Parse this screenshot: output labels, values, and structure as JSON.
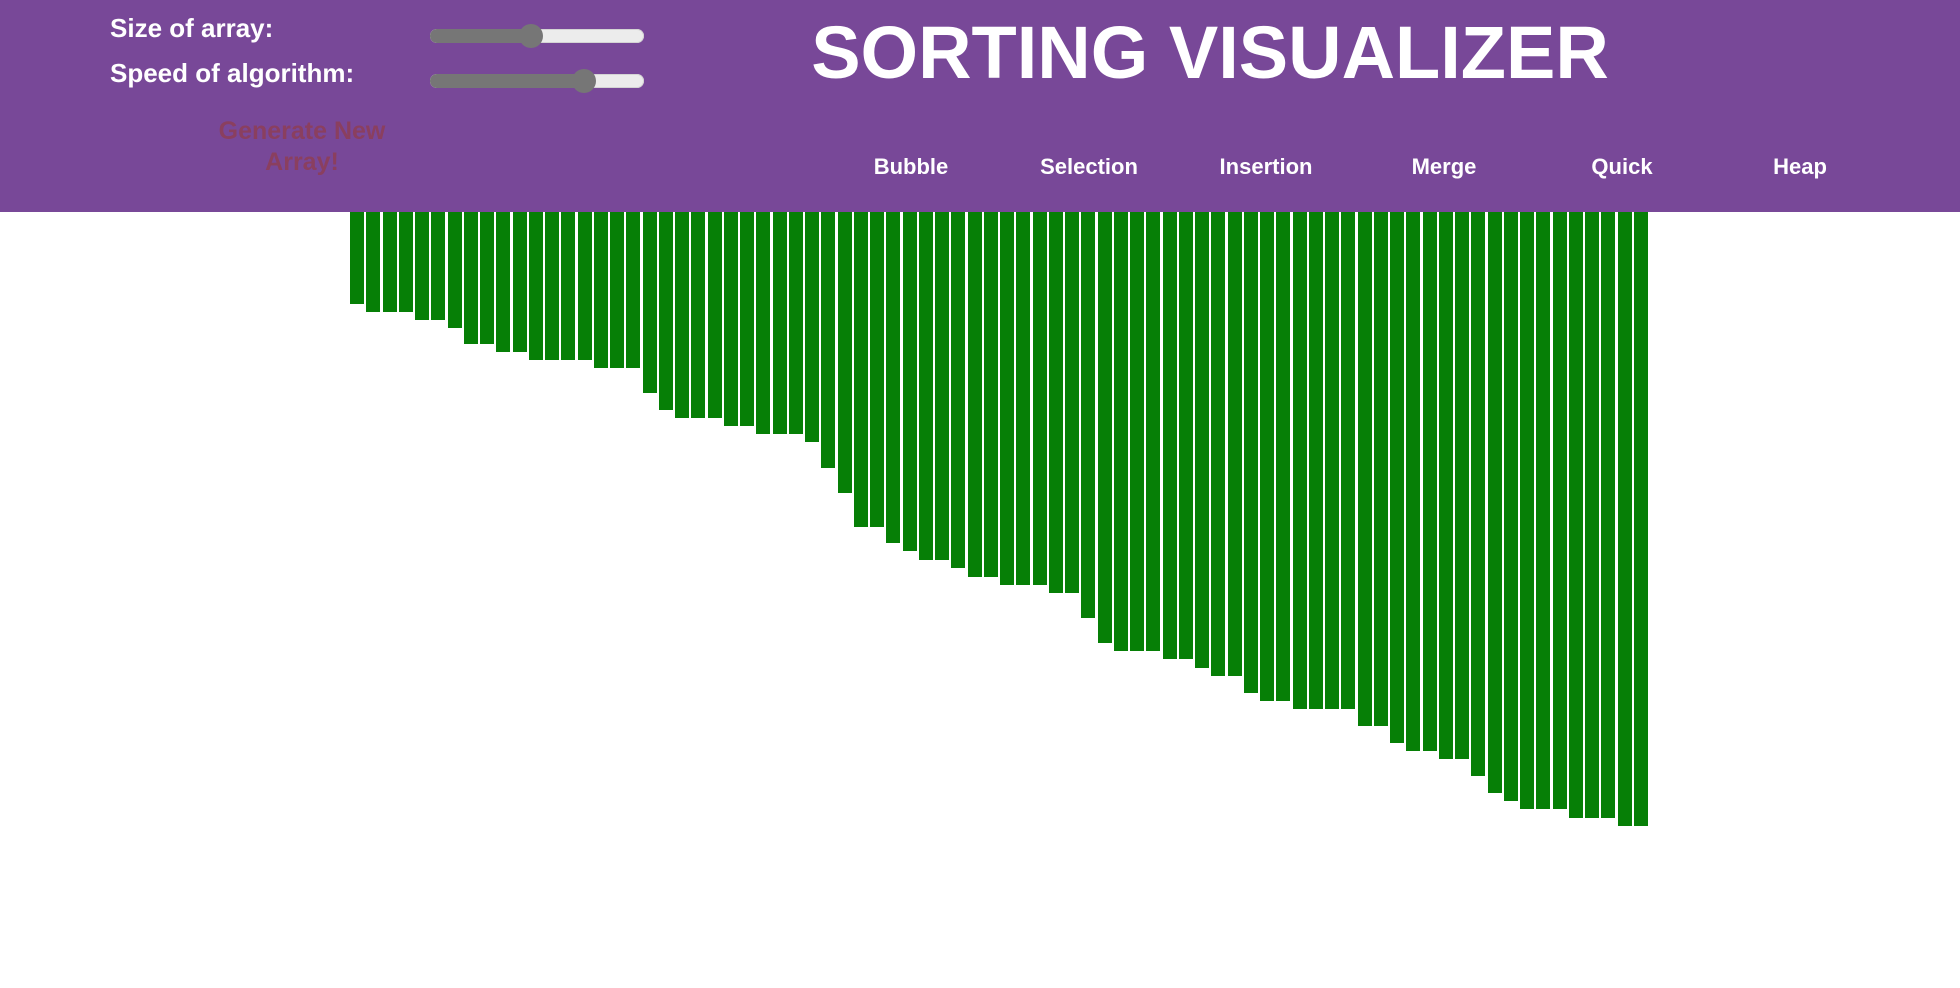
{
  "header": {
    "title": "SORTING VISUALIZER",
    "size_label": "Size of array:",
    "speed_label": "Speed of algorithm:",
    "generate_label": "Generate New Array!",
    "background_color": "#784898"
  },
  "controls": {
    "size_slider_fraction": 0.47,
    "speed_slider_fraction": 0.72
  },
  "algorithms": [
    "Bubble",
    "Selection",
    "Insertion",
    "Merge",
    "Quick",
    "Heap"
  ],
  "bars": {
    "color": "#067f06",
    "values": [
      92,
      100,
      100,
      100,
      108,
      108,
      116,
      132,
      132,
      140,
      140,
      148,
      148,
      148,
      148,
      156,
      156,
      156,
      181,
      198,
      206,
      206,
      206,
      214,
      214,
      222,
      222,
      222,
      230,
      256,
      281,
      315,
      315,
      331,
      339,
      348,
      348,
      356,
      365,
      365,
      373,
      373,
      373,
      381,
      381,
      406,
      431,
      439,
      439,
      439,
      447,
      447,
      456,
      464,
      464,
      481,
      489,
      489,
      497,
      497,
      497,
      497,
      514,
      514,
      531,
      539,
      539,
      547,
      547,
      564,
      581,
      589,
      597,
      597,
      597,
      606,
      606,
      606,
      614,
      614
    ]
  }
}
